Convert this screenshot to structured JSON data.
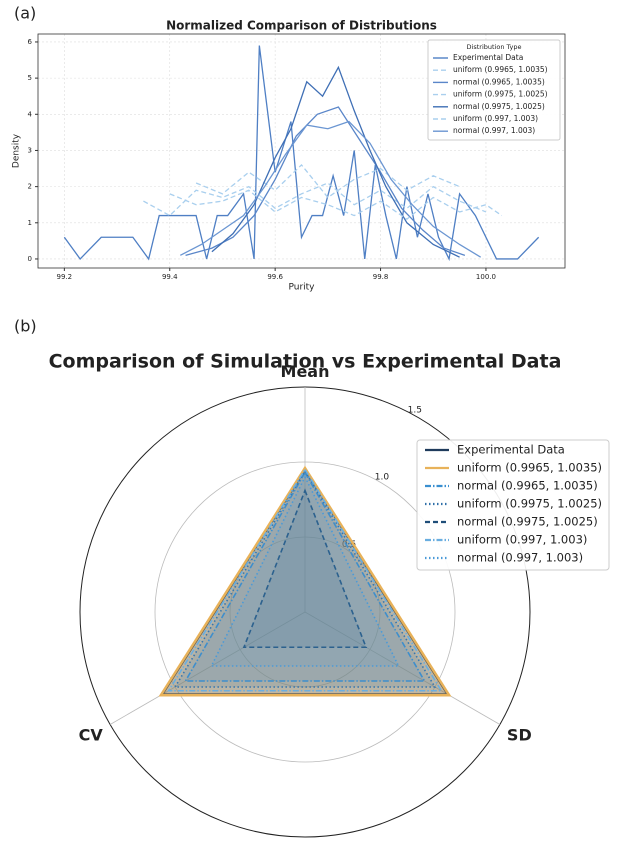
{
  "chart_data": [
    {
      "type": "line",
      "panel_label": "(a)",
      "title": "Normalized Comparison of Distributions",
      "x_label": "Purity",
      "y_label": "Density",
      "xlim": [
        99.15,
        100.15
      ],
      "ylim": [
        -0.25,
        6.22
      ],
      "xticks": [
        99.2,
        99.4,
        99.6,
        99.8,
        {
          "value": 100,
          "label": "100.0"
        }
      ],
      "yticks": [
        0,
        1,
        2,
        3,
        4,
        5,
        6
      ],
      "grid": true,
      "legend_title": "Distribution Type",
      "legend_position": "upper right",
      "series": [
        {
          "name": "Experimental Data",
          "color": "#4f7fc4",
          "style": "solid",
          "x": [
            99.2,
            99.23,
            99.27,
            99.33,
            99.36,
            99.38,
            99.45,
            99.47,
            99.49,
            99.51,
            99.54,
            99.56,
            99.57,
            99.6,
            99.63,
            99.65,
            99.67,
            99.69,
            99.71,
            99.73,
            99.75,
            99.77,
            99.79,
            99.81,
            99.83,
            99.85,
            99.87,
            99.89,
            99.91,
            99.93,
            99.95,
            99.98,
            100.02,
            100.06,
            100.1
          ],
          "values": [
            0.6,
            0,
            0.6,
            0.6,
            0,
            1.2,
            1.2,
            0,
            1.2,
            1.2,
            1.8,
            0,
            5.9,
            2.4,
            3.8,
            0.6,
            1.2,
            1.2,
            2.3,
            1.2,
            3.0,
            0,
            2.6,
            1.2,
            0,
            2.0,
            0.6,
            1.8,
            0.6,
            0,
            1.8,
            1.2,
            0,
            0,
            0.6
          ]
        },
        {
          "name": "uniform (0.9965, 1.0035)",
          "color": "#a9cfee",
          "style": "dashed",
          "x": [
            99.35,
            99.4,
            99.45,
            99.5,
            99.55,
            99.6,
            99.65,
            99.7,
            99.75,
            99.8,
            99.85,
            99.9,
            99.95,
            100.0
          ],
          "values": [
            1.6,
            1.2,
            1.9,
            1.7,
            2.0,
            1.4,
            1.8,
            2.1,
            1.5,
            1.9,
            1.4,
            2.0,
            1.6,
            1.3
          ]
        },
        {
          "name": "normal (0.9965, 1.0035)",
          "color": "#5a86c9",
          "style": "solid",
          "x": [
            99.43,
            99.48,
            99.52,
            99.56,
            99.6,
            99.64,
            99.68,
            99.72,
            99.76,
            99.8,
            99.84,
            99.88,
            99.92,
            99.96
          ],
          "values": [
            0.1,
            0.3,
            0.6,
            1.2,
            2.2,
            3.4,
            4.0,
            4.2,
            3.3,
            2.4,
            1.4,
            0.8,
            0.3,
            0.1
          ]
        },
        {
          "name": "uniform (0.9975, 1.0025)",
          "color": "#a9cfee",
          "style": "dashed",
          "x": [
            99.45,
            99.5,
            99.55,
            99.6,
            99.65,
            99.7,
            99.75,
            99.8,
            99.85,
            99.9,
            99.95
          ],
          "values": [
            2.1,
            1.8,
            2.4,
            1.9,
            2.6,
            1.7,
            2.2,
            2.5,
            1.9,
            2.3,
            2.0
          ]
        },
        {
          "name": "normal (0.9975, 1.0025)",
          "color": "#3f6fb5",
          "style": "solid",
          "x": [
            99.48,
            99.52,
            99.56,
            99.6,
            99.63,
            99.66,
            99.69,
            99.72,
            99.75,
            99.78,
            99.81,
            99.85,
            99.9,
            99.95
          ],
          "values": [
            0.2,
            0.7,
            1.5,
            2.8,
            3.6,
            4.9,
            4.5,
            5.3,
            4.1,
            3.0,
            2.0,
            1.0,
            0.4,
            0.05
          ]
        },
        {
          "name": "uniform (0.997, 1.003)",
          "color": "#a9cfee",
          "style": "dashed",
          "x": [
            99.4,
            99.45,
            99.5,
            99.55,
            99.6,
            99.65,
            99.7,
            99.75,
            99.8,
            99.85,
            99.9,
            99.95,
            100.0,
            100.03
          ],
          "values": [
            1.8,
            1.5,
            1.6,
            1.9,
            1.3,
            1.7,
            1.5,
            1.2,
            1.6,
            1.1,
            1.7,
            1.3,
            1.5,
            1.2
          ]
        },
        {
          "name": "normal (0.997, 1.003)",
          "color": "#6b96d2",
          "style": "solid",
          "x": [
            99.42,
            99.46,
            99.5,
            99.54,
            99.58,
            99.62,
            99.66,
            99.7,
            99.74,
            99.78,
            99.82,
            99.86,
            99.9,
            99.95,
            99.99
          ],
          "values": [
            0.1,
            0.4,
            0.8,
            1.2,
            2.0,
            2.9,
            3.7,
            3.6,
            3.8,
            3.2,
            2.2,
            1.5,
            0.9,
            0.4,
            0.05
          ]
        }
      ]
    },
    {
      "type": "radar",
      "panel_label": "(b)",
      "title": "Comparison of Simulation vs Experimental Data",
      "categories": [
        "Mean",
        "SD",
        "CV"
      ],
      "rlim": [
        0,
        1.5
      ],
      "rticks": [
        0.5,
        {
          "value": 1,
          "label": "1.0"
        },
        1.5
      ],
      "legend_position": "right",
      "series": [
        {
          "name": "Experimental Data",
          "color": "#1f3b5c",
          "style": "solid",
          "values": [
            0.95,
            1.1,
            1.1
          ]
        },
        {
          "name": "uniform (0.9965, 1.0035)",
          "color": "#e8b25a",
          "style": "solid",
          "values": [
            0.96,
            1.11,
            1.11
          ]
        },
        {
          "name": "normal (0.9965, 1.0035)",
          "color": "#3a8fd0",
          "style": "dashdot",
          "values": [
            0.93,
            0.92,
            0.92
          ]
        },
        {
          "name": "uniform (0.9975, 1.0025)",
          "color": "#2f6fa8",
          "style": "dotted",
          "values": [
            0.94,
            1.0,
            1.0
          ]
        },
        {
          "name": "normal (0.9975, 1.0025)",
          "color": "#1f4e79",
          "style": "dashed",
          "values": [
            0.81,
            0.47,
            0.47
          ]
        },
        {
          "name": "uniform (0.997, 1.003)",
          "color": "#6aaee0",
          "style": "dashdot",
          "values": [
            0.95,
            1.05,
            1.05
          ]
        },
        {
          "name": "normal (0.997, 1.003)",
          "color": "#4a9ad8",
          "style": "dotted",
          "values": [
            0.9,
            0.72,
            0.72
          ]
        }
      ]
    }
  ]
}
